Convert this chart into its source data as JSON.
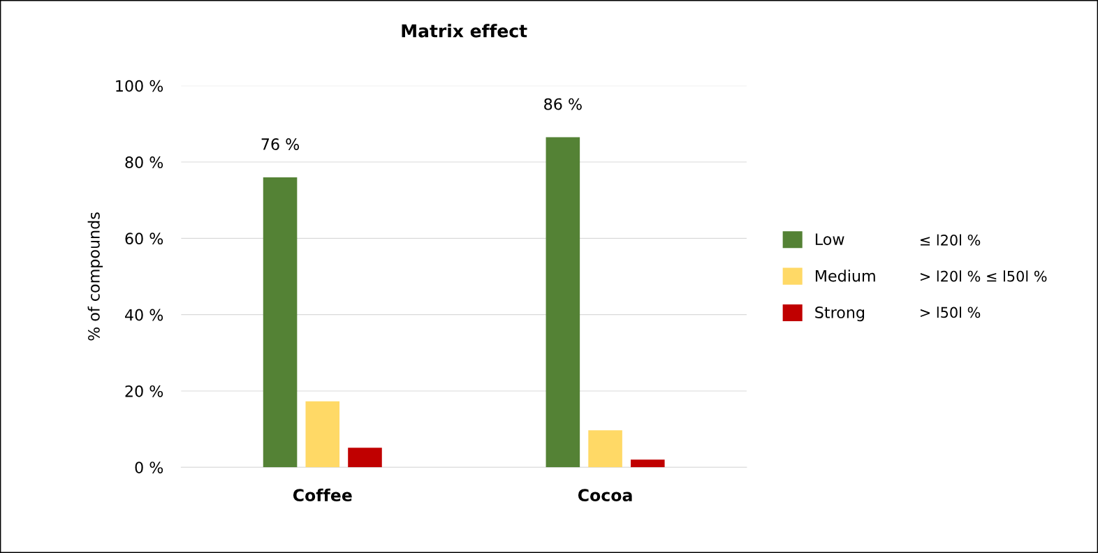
{
  "chart_data": {
    "type": "bar",
    "title": "Matrix effect",
    "ylabel": "% of compounds",
    "categories": [
      "Coffee",
      "Cocoa"
    ],
    "series": [
      {
        "name": "Low",
        "color": "#548235",
        "values": [
          76,
          86.5
        ],
        "value_labels": [
          "76 %",
          "86 %"
        ]
      },
      {
        "name": "Medium",
        "color": "#ffd966",
        "values": [
          17.3,
          9.7
        ]
      },
      {
        "name": "Strong",
        "color": "#c00000",
        "values": [
          5.1,
          2.0
        ]
      }
    ],
    "ylim": [
      0,
      100
    ],
    "yticks": [
      {
        "value": 0,
        "label": "0 %"
      },
      {
        "value": 20,
        "label": "20 %"
      },
      {
        "value": 40,
        "label": "40 %"
      },
      {
        "value": 60,
        "label": "60 %"
      },
      {
        "value": 80,
        "label": "80 %"
      },
      {
        "value": 100,
        "label": "100 %"
      }
    ],
    "grid": "y",
    "legend": "right",
    "annotations": [
      "≤ l20l %",
      "> l20l % ≤ l50l %",
      "> l50l %"
    ]
  }
}
